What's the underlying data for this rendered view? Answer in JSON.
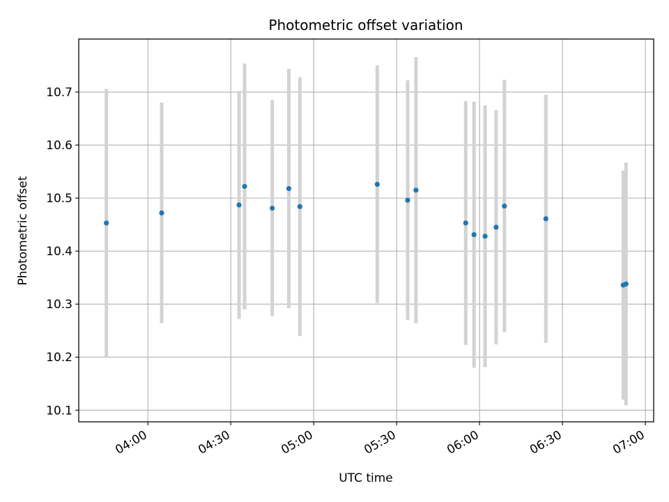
{
  "chart_data": {
    "type": "scatter",
    "title": "Photometric offset variation",
    "xlabel": "UTC time",
    "ylabel": "Photometric offset",
    "grid": true,
    "x_unit": "HH:MM UTC",
    "xlim": [
      "03:35",
      "07:03"
    ],
    "ylim": [
      10.078,
      10.8
    ],
    "x_ticks": [
      "04:00",
      "04:30",
      "05:00",
      "05:30",
      "06:00",
      "06:30",
      "07:00"
    ],
    "y_ticks": [
      10.1,
      10.2,
      10.3,
      10.4,
      10.5,
      10.6,
      10.7
    ],
    "point_color": "#1f77b4",
    "errorbar_color": "#d3d3d3",
    "points": [
      {
        "x": "03:45",
        "y": 10.453,
        "err": 0.253
      },
      {
        "x": "04:05",
        "y": 10.472,
        "err": 0.208
      },
      {
        "x": "04:33",
        "y": 10.487,
        "err": 0.215
      },
      {
        "x": "04:35",
        "y": 10.522,
        "err": 0.232
      },
      {
        "x": "04:45",
        "y": 10.481,
        "err": 0.204
      },
      {
        "x": "04:51",
        "y": 10.518,
        "err": 0.226
      },
      {
        "x": "04:55",
        "y": 10.484,
        "err": 0.244
      },
      {
        "x": "05:23",
        "y": 10.526,
        "err": 0.224
      },
      {
        "x": "05:34",
        "y": 10.496,
        "err": 0.226
      },
      {
        "x": "05:37",
        "y": 10.515,
        "err": 0.251
      },
      {
        "x": "05:55",
        "y": 10.453,
        "err": 0.23
      },
      {
        "x": "05:58",
        "y": 10.431,
        "err": 0.251
      },
      {
        "x": "06:02",
        "y": 10.428,
        "err": 0.247
      },
      {
        "x": "06:06",
        "y": 10.445,
        "err": 0.221
      },
      {
        "x": "06:09",
        "y": 10.485,
        "err": 0.238
      },
      {
        "x": "06:24",
        "y": 10.461,
        "err": 0.234
      },
      {
        "x": "06:52",
        "y": 10.336,
        "err": 0.216
      },
      {
        "x": "06:53",
        "y": 10.338,
        "err": 0.229
      }
    ]
  }
}
